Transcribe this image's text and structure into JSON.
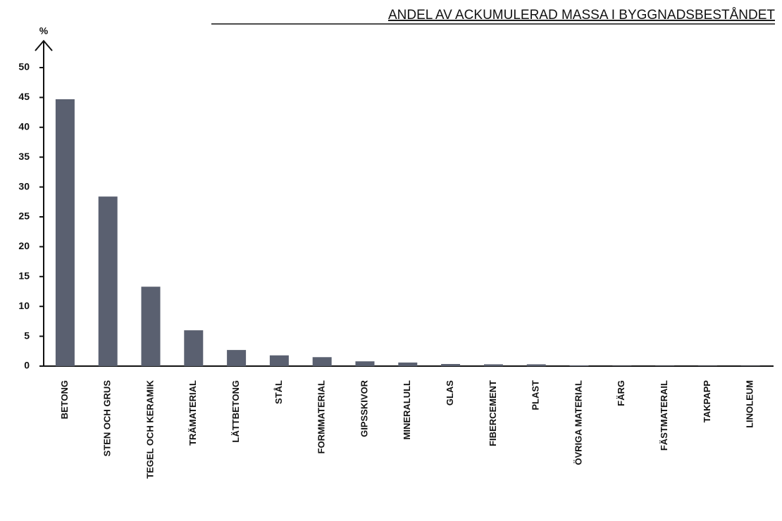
{
  "chart_data": {
    "type": "bar",
    "title": "ANDEL AV ACKUMULERAD MASSA I BYGGNADSBESTÅNDET",
    "y_label": "%",
    "categories": [
      "BETONG",
      "STEN OCH GRUS",
      "TEGEL OCH KERAMIK",
      "TRÄMATERIAL",
      "LÄTTBETONG",
      "STÅL",
      "FORMMATERIAL",
      "GIPSSKIVOR",
      "MINERALULL",
      "GLAS",
      "FIBERCEMENT",
      "PLAST",
      "ÖVRIGA MATERIAL",
      "FÄRG",
      "FÄSTMATERAIL",
      "TAKPAPP",
      "LINOLEUM"
    ],
    "values": [
      44.7,
      28.4,
      13.3,
      6.0,
      2.7,
      1.8,
      1.5,
      0.8,
      0.6,
      0.35,
      0.3,
      0.3,
      0.1,
      0.05,
      0.05,
      0.05,
      0.05
    ],
    "color": "#5a6070",
    "ylim": [
      0,
      50
    ],
    "yticks": [
      0,
      5,
      10,
      15,
      20,
      25,
      30,
      35,
      40,
      45,
      50
    ],
    "grid": false
  }
}
